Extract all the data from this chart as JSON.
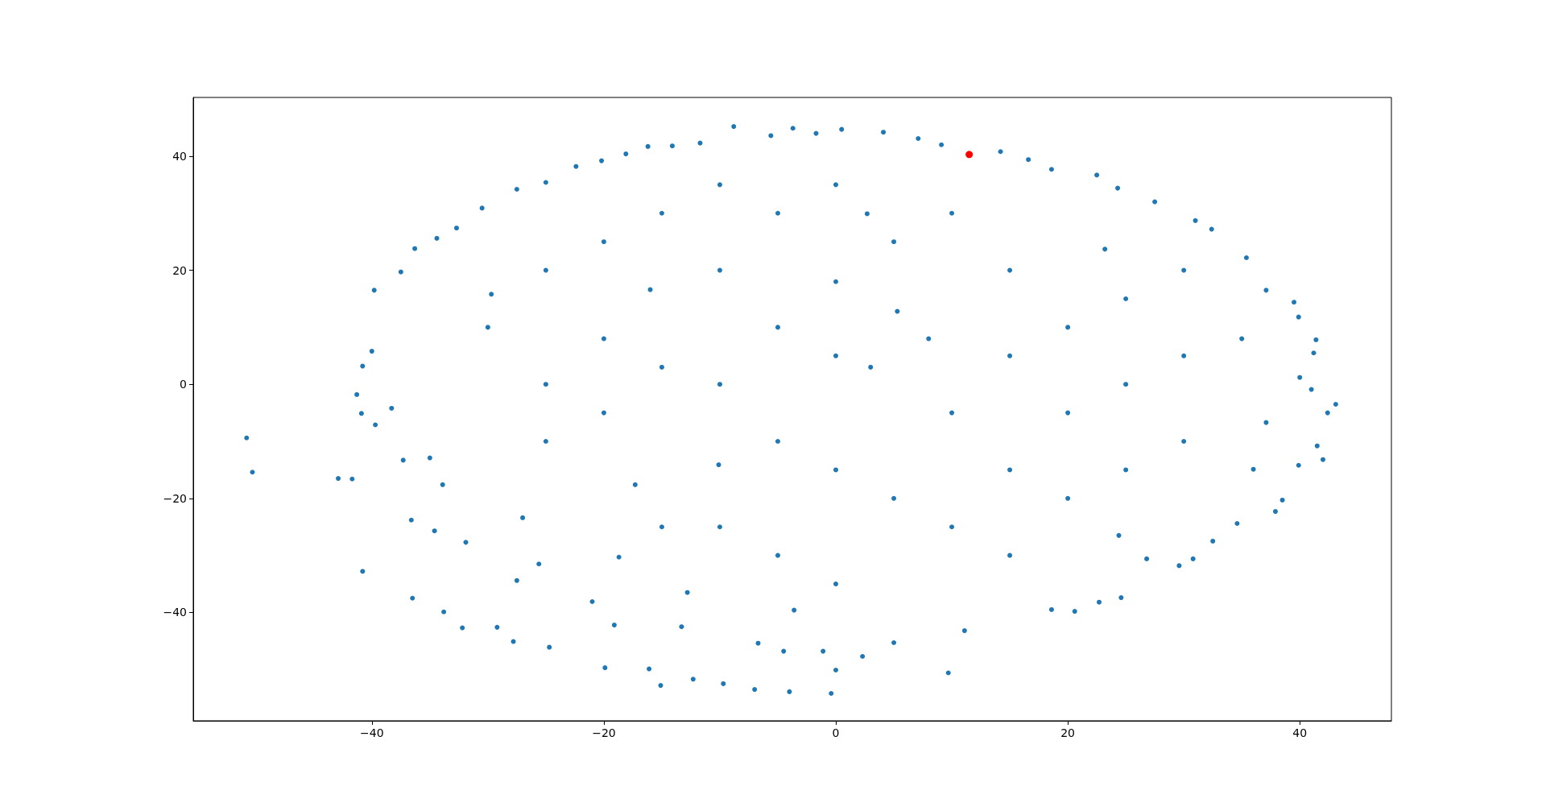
{
  "chart_data": {
    "type": "scatter",
    "xlim": [
      -55.4,
      47.9
    ],
    "ylim": [
      -59,
      50.3
    ],
    "marker": "circle",
    "xticks": [
      {
        "value": -40,
        "label": "−40"
      },
      {
        "value": -20,
        "label": "−20"
      },
      0,
      20,
      40
    ],
    "yticks": [
      {
        "value": -40,
        "label": "−40"
      },
      {
        "value": -20,
        "label": "−20"
      },
      0,
      20,
      40
    ],
    "series": [
      {
        "color": "#1f77b4",
        "x": [
          -50.8,
          -50.3,
          -42.9,
          -41.7,
          -40.8,
          -36.5,
          -33.8,
          -32.2,
          -29.2,
          -27.8,
          -24.7,
          -19.9,
          -16.1,
          -15.1,
          -12.3,
          -9.7,
          -7.0,
          -4.0,
          -0.4,
          0.0,
          -1.1,
          9.7,
          2.3,
          11.1,
          5.0,
          20.6,
          18.6,
          24.6,
          22.7,
          24.4,
          29.6,
          26.8,
          30.8,
          32.5,
          34.6,
          37.9,
          38.5,
          36.0,
          42.0,
          39.9,
          42.4,
          43.1,
          37.1,
          41.5,
          0.5,
          4.1,
          7.1,
          9.1,
          14.2,
          16.6,
          18.6,
          22.5,
          24.3,
          27.5,
          31.0,
          32.4,
          35.4,
          37.1,
          39.5,
          41.4,
          41.2,
          41.0,
          40.0,
          39.9,
          2.7,
          5.3,
          23.2,
          -39.8,
          -41.3,
          -40.9,
          -40.8,
          -40.0,
          -37.5,
          -36.3,
          -34.4,
          -32.7,
          -30.5,
          -27.5,
          -25.0,
          -22.4,
          -20.2,
          -18.1,
          -16.2,
          -14.1,
          -11.7,
          -8.8,
          -5.6,
          -3.7,
          -1.7,
          -16.0,
          -29.7,
          -35.0,
          -33.9,
          -37.3,
          -17.3,
          -18.7,
          -12.8,
          -27.0,
          -10.1,
          -39.7,
          -38.3,
          -36.6,
          -34.6,
          -31.9,
          -25.6,
          -27.5,
          -21.0,
          -19.1,
          -13.3,
          -6.7,
          -4.5,
          -3.6,
          -30,
          -25,
          -25,
          -25,
          -20,
          -20,
          -20,
          -15,
          -15,
          -15,
          -10,
          -10,
          -10,
          -10,
          -5,
          -5,
          -5,
          -5,
          0,
          0,
          0,
          0,
          0,
          3,
          5,
          5,
          8,
          10,
          10,
          10,
          15,
          15,
          15,
          15,
          20,
          20,
          20,
          25,
          25,
          25,
          30,
          30,
          30,
          35
        ],
        "values": [
          -9.4,
          -15.4,
          -16.5,
          -16.6,
          -32.8,
          -37.5,
          -39.9,
          -42.7,
          -42.6,
          -45.1,
          -46.1,
          -49.7,
          -49.9,
          -52.8,
          -51.7,
          -52.5,
          -53.5,
          -53.9,
          -54.2,
          -50.1,
          -46.8,
          -50.6,
          -47.7,
          -43.2,
          -45.3,
          -39.8,
          -39.5,
          -37.4,
          -38.2,
          -26.5,
          -31.8,
          -30.6,
          -30.6,
          -27.5,
          -24.4,
          -22.3,
          -20.3,
          -14.9,
          -13.2,
          -14.2,
          -5.0,
          -3.5,
          -6.7,
          -10.8,
          44.7,
          44.2,
          43.1,
          42.0,
          40.8,
          39.4,
          37.7,
          36.7,
          34.4,
          32.0,
          28.7,
          27.2,
          22.2,
          16.5,
          14.4,
          7.8,
          5.5,
          -0.9,
          1.2,
          11.8,
          29.9,
          12.8,
          23.7,
          16.5,
          -1.8,
          -5.1,
          3.2,
          5.8,
          19.7,
          23.8,
          25.6,
          27.4,
          30.9,
          34.2,
          35.4,
          38.2,
          39.2,
          40.4,
          41.7,
          41.8,
          42.3,
          45.2,
          43.6,
          44.9,
          44.0,
          16.6,
          15.8,
          -12.9,
          -17.6,
          -13.3,
          -17.6,
          -30.3,
          -36.5,
          -23.4,
          -14.1,
          -7.1,
          -4.2,
          -23.8,
          -25.7,
          -27.7,
          -31.5,
          -34.4,
          -38.1,
          -42.2,
          -42.5,
          -45.4,
          -46.8,
          -39.6,
          10,
          20,
          0,
          -10,
          25,
          8,
          -5,
          30,
          3,
          -25,
          35,
          20,
          0,
          -25,
          30,
          10,
          -10,
          -30,
          35,
          18,
          5,
          -15,
          -35,
          3,
          25,
          -20,
          8,
          30,
          -5,
          -25,
          20,
          5,
          -15,
          -30,
          10,
          -5,
          -20,
          15,
          0,
          -15,
          20,
          5,
          -10,
          8
        ]
      },
      {
        "color": "#ff0000",
        "x": [
          11.5
        ],
        "values": [
          40.3
        ]
      }
    ]
  }
}
